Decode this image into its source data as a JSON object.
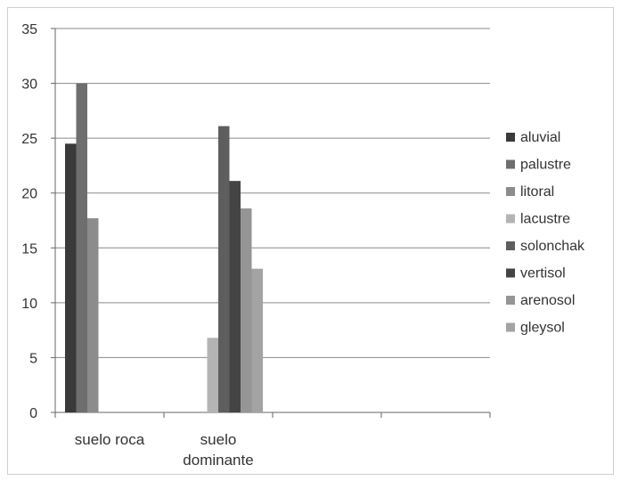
{
  "chart_data": {
    "type": "bar",
    "title": "",
    "xlabel": "",
    "ylabel": "",
    "ylim": [
      0,
      35
    ],
    "yticks": [
      0,
      5,
      10,
      15,
      20,
      25,
      30,
      35
    ],
    "grid": true,
    "legend_position": "right",
    "categories": [
      [
        "suelo roca"
      ],
      [
        "suelo",
        "dominante"
      ],
      [],
      []
    ],
    "series": [
      {
        "name": "aluvial",
        "color": "#3a3a3a",
        "values": [
          24.5,
          null,
          null,
          null
        ]
      },
      {
        "name": "palustre",
        "color": "#6e6e6e",
        "values": [
          30,
          null,
          null,
          null
        ]
      },
      {
        "name": "litoral",
        "color": "#8c8c8c",
        "values": [
          17.7,
          null,
          null,
          null
        ]
      },
      {
        "name": "lacustre",
        "color": "#b4b4b4",
        "values": [
          null,
          6.8,
          null,
          null
        ]
      },
      {
        "name": "solonchak",
        "color": "#5e5e5e",
        "values": [
          null,
          26.1,
          null,
          null
        ]
      },
      {
        "name": "vertisol",
        "color": "#444444",
        "values": [
          null,
          21.1,
          null,
          null
        ]
      },
      {
        "name": "arenosol",
        "color": "#959595",
        "values": [
          null,
          18.6,
          null,
          null
        ]
      },
      {
        "name": "gleysol",
        "color": "#a3a3a3",
        "values": [
          null,
          13.1,
          null,
          null
        ]
      }
    ]
  }
}
